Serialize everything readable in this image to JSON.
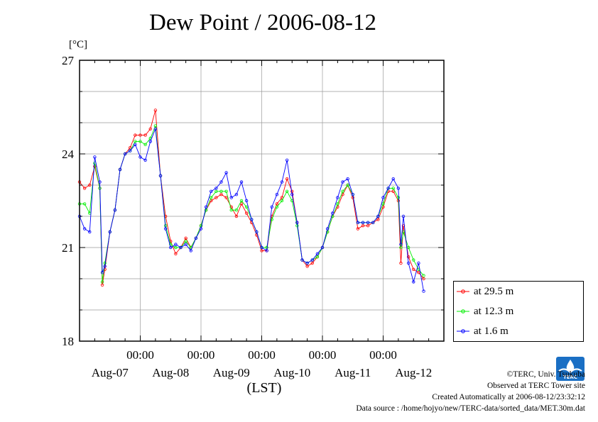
{
  "chart_data": {
    "type": "line",
    "title": "Dew Point / 2006-08-12",
    "ylabel": "[°C]",
    "xlabel": "(LST)",
    "ylim": [
      18,
      27
    ],
    "yticks": [
      "18",
      "21",
      "24",
      "27"
    ],
    "xlim_hours": [
      0,
      144
    ],
    "xtick_time_label": "00:00",
    "date_labels": [
      "Aug-07",
      "Aug-08",
      "Aug-09",
      "Aug-10",
      "Aug-11",
      "Aug-12"
    ],
    "grid": true,
    "legend_position": "right-bottom",
    "series": [
      {
        "name": "at 29.5 m",
        "color": "#ff0000",
        "points": [
          [
            0,
            23.1
          ],
          [
            2,
            22.9
          ],
          [
            4,
            23.0
          ],
          [
            6,
            23.6
          ],
          [
            8,
            22.9
          ],
          [
            9,
            19.8
          ],
          [
            10,
            20.3
          ],
          [
            12,
            21.5
          ],
          [
            14,
            22.2
          ],
          [
            16,
            23.5
          ],
          [
            18,
            24.0
          ],
          [
            20,
            24.2
          ],
          [
            22,
            24.6
          ],
          [
            24,
            24.6
          ],
          [
            26,
            24.6
          ],
          [
            28,
            24.8
          ],
          [
            30,
            25.4
          ],
          [
            32,
            23.3
          ],
          [
            34,
            22.0
          ],
          [
            36,
            21.2
          ],
          [
            38,
            20.8
          ],
          [
            40,
            21.0
          ],
          [
            42,
            21.3
          ],
          [
            44,
            21.0
          ],
          [
            46,
            21.3
          ],
          [
            48,
            21.7
          ],
          [
            50,
            22.2
          ],
          [
            52,
            22.5
          ],
          [
            54,
            22.6
          ],
          [
            56,
            22.7
          ],
          [
            58,
            22.6
          ],
          [
            60,
            22.3
          ],
          [
            62,
            22.0
          ],
          [
            64,
            22.4
          ],
          [
            66,
            22.1
          ],
          [
            68,
            21.8
          ],
          [
            70,
            21.4
          ],
          [
            72,
            20.9
          ],
          [
            74,
            20.9
          ],
          [
            76,
            22.0
          ],
          [
            78,
            22.4
          ],
          [
            80,
            22.6
          ],
          [
            82,
            23.2
          ],
          [
            84,
            22.8
          ],
          [
            86,
            21.8
          ],
          [
            88,
            20.6
          ],
          [
            90,
            20.4
          ],
          [
            92,
            20.5
          ],
          [
            94,
            20.7
          ],
          [
            96,
            21.0
          ],
          [
            98,
            21.5
          ],
          [
            100,
            22.0
          ],
          [
            102,
            22.3
          ],
          [
            104,
            22.7
          ],
          [
            106,
            23.0
          ],
          [
            108,
            22.6
          ],
          [
            110,
            21.6
          ],
          [
            112,
            21.7
          ],
          [
            114,
            21.7
          ],
          [
            116,
            21.8
          ],
          [
            118,
            21.9
          ],
          [
            120,
            22.3
          ],
          [
            122,
            22.8
          ],
          [
            124,
            22.8
          ],
          [
            126,
            22.5
          ],
          [
            127,
            20.5
          ],
          [
            128,
            21.7
          ],
          [
            130,
            20.7
          ],
          [
            132,
            20.3
          ],
          [
            134,
            20.2
          ],
          [
            136,
            20.0
          ]
        ]
      },
      {
        "name": "at 12.3 m",
        "color": "#00ee00",
        "points": [
          [
            0,
            22.4
          ],
          [
            2,
            22.4
          ],
          [
            4,
            22.1
          ],
          [
            6,
            23.7
          ],
          [
            8,
            22.9
          ],
          [
            9,
            19.9
          ],
          [
            10,
            20.5
          ],
          [
            12,
            21.5
          ],
          [
            14,
            22.2
          ],
          [
            16,
            23.5
          ],
          [
            18,
            24.0
          ],
          [
            20,
            24.1
          ],
          [
            22,
            24.4
          ],
          [
            24,
            24.4
          ],
          [
            26,
            24.3
          ],
          [
            28,
            24.5
          ],
          [
            30,
            24.9
          ],
          [
            32,
            23.3
          ],
          [
            34,
            21.7
          ],
          [
            36,
            21.1
          ],
          [
            38,
            21.0
          ],
          [
            40,
            21.0
          ],
          [
            42,
            21.2
          ],
          [
            44,
            21.0
          ],
          [
            46,
            21.3
          ],
          [
            48,
            21.7
          ],
          [
            50,
            22.2
          ],
          [
            52,
            22.6
          ],
          [
            54,
            22.8
          ],
          [
            56,
            22.8
          ],
          [
            58,
            22.8
          ],
          [
            60,
            22.2
          ],
          [
            62,
            22.2
          ],
          [
            64,
            22.5
          ],
          [
            66,
            22.3
          ],
          [
            68,
            21.9
          ],
          [
            70,
            21.5
          ],
          [
            72,
            21.0
          ],
          [
            74,
            21.0
          ],
          [
            76,
            21.9
          ],
          [
            78,
            22.3
          ],
          [
            80,
            22.5
          ],
          [
            82,
            22.8
          ],
          [
            84,
            22.5
          ],
          [
            86,
            21.7
          ],
          [
            88,
            20.6
          ],
          [
            90,
            20.5
          ],
          [
            92,
            20.6
          ],
          [
            94,
            20.7
          ],
          [
            96,
            21.0
          ],
          [
            98,
            21.5
          ],
          [
            100,
            22.0
          ],
          [
            102,
            22.4
          ],
          [
            104,
            22.8
          ],
          [
            106,
            23.0
          ],
          [
            108,
            22.7
          ],
          [
            110,
            21.8
          ],
          [
            112,
            21.8
          ],
          [
            114,
            21.8
          ],
          [
            116,
            21.8
          ],
          [
            118,
            22.0
          ],
          [
            120,
            22.4
          ],
          [
            122,
            22.9
          ],
          [
            124,
            22.9
          ],
          [
            126,
            22.6
          ],
          [
            127,
            21.0
          ],
          [
            128,
            21.5
          ],
          [
            130,
            21.0
          ],
          [
            132,
            20.6
          ],
          [
            134,
            20.3
          ],
          [
            136,
            20.1
          ]
        ]
      },
      {
        "name": "at 1.6 m",
        "color": "#0000ff",
        "points": [
          [
            0,
            22.0
          ],
          [
            2,
            21.6
          ],
          [
            4,
            21.5
          ],
          [
            6,
            23.9
          ],
          [
            8,
            23.1
          ],
          [
            9,
            20.2
          ],
          [
            10,
            20.4
          ],
          [
            12,
            21.5
          ],
          [
            14,
            22.2
          ],
          [
            16,
            23.5
          ],
          [
            18,
            24.0
          ],
          [
            20,
            24.1
          ],
          [
            22,
            24.3
          ],
          [
            24,
            23.9
          ],
          [
            26,
            23.8
          ],
          [
            28,
            24.4
          ],
          [
            30,
            24.8
          ],
          [
            32,
            23.3
          ],
          [
            34,
            21.6
          ],
          [
            36,
            21.0
          ],
          [
            38,
            21.1
          ],
          [
            40,
            21.0
          ],
          [
            42,
            21.1
          ],
          [
            44,
            20.9
          ],
          [
            46,
            21.3
          ],
          [
            48,
            21.6
          ],
          [
            50,
            22.3
          ],
          [
            52,
            22.8
          ],
          [
            54,
            22.9
          ],
          [
            56,
            23.1
          ],
          [
            58,
            23.4
          ],
          [
            60,
            22.6
          ],
          [
            62,
            22.7
          ],
          [
            64,
            23.1
          ],
          [
            66,
            22.5
          ],
          [
            68,
            21.9
          ],
          [
            70,
            21.5
          ],
          [
            72,
            21.0
          ],
          [
            74,
            20.9
          ],
          [
            76,
            22.3
          ],
          [
            78,
            22.7
          ],
          [
            80,
            23.1
          ],
          [
            82,
            23.8
          ],
          [
            84,
            22.7
          ],
          [
            86,
            21.8
          ],
          [
            88,
            20.6
          ],
          [
            90,
            20.5
          ],
          [
            92,
            20.6
          ],
          [
            94,
            20.8
          ],
          [
            96,
            21.0
          ],
          [
            98,
            21.6
          ],
          [
            100,
            22.1
          ],
          [
            102,
            22.6
          ],
          [
            104,
            23.1
          ],
          [
            106,
            23.2
          ],
          [
            108,
            22.7
          ],
          [
            110,
            21.8
          ],
          [
            112,
            21.8
          ],
          [
            114,
            21.8
          ],
          [
            116,
            21.8
          ],
          [
            118,
            22.0
          ],
          [
            120,
            22.6
          ],
          [
            122,
            22.9
          ],
          [
            124,
            23.2
          ],
          [
            126,
            22.9
          ],
          [
            127,
            21.1
          ],
          [
            128,
            22.0
          ],
          [
            130,
            20.5
          ],
          [
            132,
            19.9
          ],
          [
            134,
            20.5
          ],
          [
            136,
            19.6
          ]
        ]
      }
    ]
  },
  "credits": {
    "copyright": "©TERC, Univ. Tsukuba",
    "observed": "Observed at TERC Tower site",
    "created": "Created Automatically at 2006-08-12/23:32:12",
    "source": "Data source : /home/hojyo/new/TERC-data/sorted_data/MET.30m.dat"
  },
  "logo": {
    "text": "TERC",
    "color": "#1a6fc4"
  }
}
